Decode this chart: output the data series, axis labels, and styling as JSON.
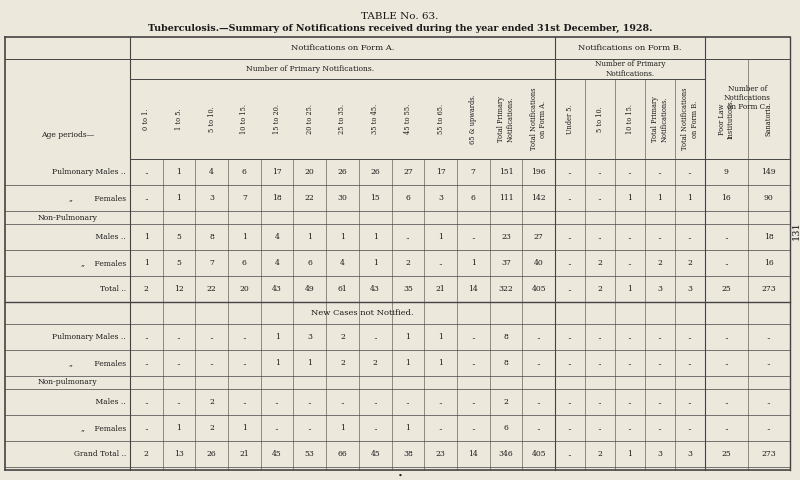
{
  "title1": "TABLE No. 63.",
  "title2": "Tuberculosis.—Summary of Notifications received during the year ended 31st December, 1928.",
  "bg_color": "#ede8dc",
  "text_color": "#1a1a1a",
  "data": {
    "pulm_males": [
      "..",
      "1",
      "4",
      "6",
      "17",
      "20",
      "26",
      "26",
      "27",
      "17",
      "7",
      "151",
      "196",
      "..",
      "..",
      "..",
      "..",
      "..",
      "9",
      "149"
    ],
    "pulm_females": [
      "..",
      "1",
      "3",
      "7",
      "18",
      "22",
      "30",
      "15",
      "6",
      "3",
      "6",
      "111",
      "142",
      "..",
      "..",
      "1",
      "1",
      "1",
      "16",
      "90"
    ],
    "nonp_males": [
      "1",
      "5",
      "8",
      "1",
      "4",
      "1",
      "1",
      "1",
      "..",
      "1",
      "..",
      "23",
      "27",
      "..",
      "..",
      "..",
      "..",
      "..",
      "..",
      "18"
    ],
    "nonp_females": [
      "1",
      "5",
      "7",
      "6",
      "4",
      "6",
      "4",
      "1",
      "2",
      "..",
      "1",
      "37",
      "40",
      "..",
      "2",
      "..",
      "2",
      "2",
      "..",
      "16"
    ],
    "total": [
      "2",
      "12",
      "22",
      "20",
      "43",
      "49",
      "61",
      "43",
      "35",
      "21",
      "14",
      "322",
      "405",
      "..",
      "2",
      "1",
      "3",
      "3",
      "25",
      "273"
    ],
    "new_pulm_males": [
      "..",
      "..",
      "..",
      "..",
      "1",
      "3",
      "2",
      "..",
      "1",
      "1",
      "..",
      "8",
      "..",
      "..",
      "..",
      "..",
      "..",
      "..",
      "..",
      ".."
    ],
    "new_pulm_females": [
      "..",
      "..",
      "..",
      "..",
      "1",
      "1",
      "2",
      "2",
      "1",
      "1",
      "..",
      "8",
      "..",
      "..",
      "..",
      "..",
      "..",
      "..",
      "..",
      ".."
    ],
    "new_nonp_males": [
      "..",
      "..",
      "2",
      "..",
      "..",
      "..",
      "..",
      "..",
      "..",
      "..",
      "..",
      "2",
      "..",
      "..",
      "..",
      "..",
      "..",
      "..",
      "..",
      ".."
    ],
    "new_nonp_females": [
      "..",
      "1",
      "2",
      "1",
      "..",
      "..",
      "1",
      "..",
      "1",
      "..",
      "..",
      "6",
      "..",
      "..",
      "..",
      "..",
      "..",
      "..",
      "..",
      ".."
    ],
    "grand_total": [
      "2",
      "13",
      "26",
      "21",
      "45",
      "53",
      "66",
      "45",
      "38",
      "23",
      "14",
      "346",
      "405",
      "..",
      "2",
      "1",
      "3",
      "3",
      "25",
      "273"
    ]
  }
}
